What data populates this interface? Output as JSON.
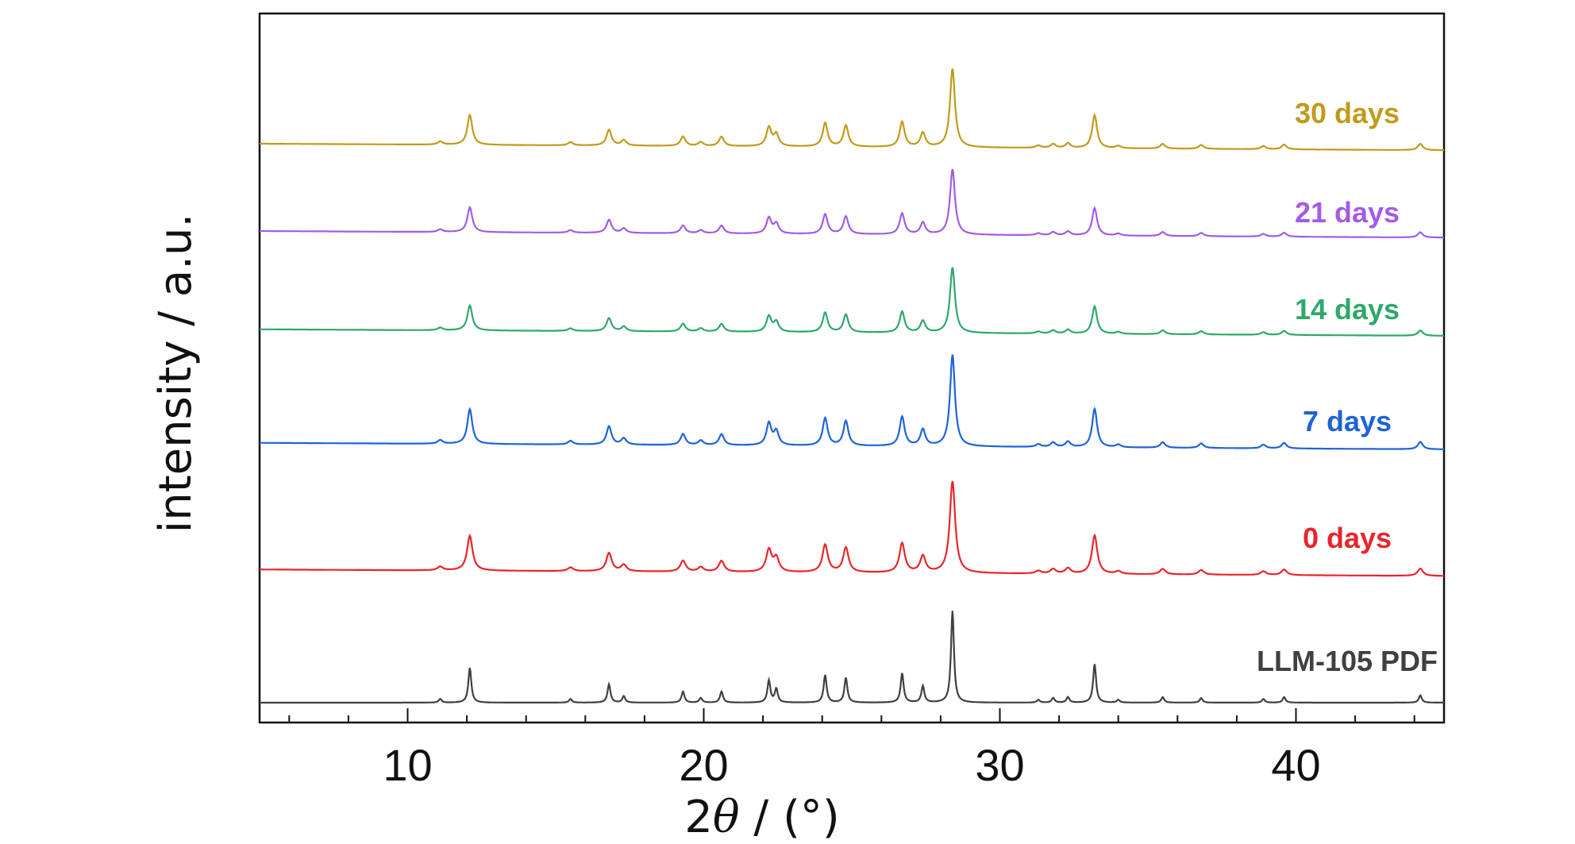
{
  "chart_data": {
    "type": "line",
    "xlabel_prefix": "2",
    "xlabel_theta": "θ",
    "xlabel_suffix": " / (°)",
    "ylabel": "intensity / a.u.",
    "xlim": [
      5,
      45
    ],
    "xticks": [
      "10",
      "20",
      "30",
      "40"
    ],
    "grid": false,
    "peaks": [
      {
        "x": 11.1,
        "h": 0.04
      },
      {
        "x": 12.1,
        "h": 0.38
      },
      {
        "x": 15.5,
        "h": 0.04
      },
      {
        "x": 16.8,
        "h": 0.2
      },
      {
        "x": 17.3,
        "h": 0.07
      },
      {
        "x": 19.3,
        "h": 0.12
      },
      {
        "x": 19.9,
        "h": 0.05
      },
      {
        "x": 20.6,
        "h": 0.12
      },
      {
        "x": 22.2,
        "h": 0.24
      },
      {
        "x": 22.45,
        "h": 0.15
      },
      {
        "x": 24.1,
        "h": 0.3
      },
      {
        "x": 24.8,
        "h": 0.27
      },
      {
        "x": 26.7,
        "h": 0.32
      },
      {
        "x": 27.4,
        "h": 0.18
      },
      {
        "x": 28.4,
        "h": 1.0
      },
      {
        "x": 31.3,
        "h": 0.03
      },
      {
        "x": 31.8,
        "h": 0.05
      },
      {
        "x": 32.3,
        "h": 0.06
      },
      {
        "x": 33.2,
        "h": 0.42
      },
      {
        "x": 34.0,
        "h": 0.03
      },
      {
        "x": 35.5,
        "h": 0.06
      },
      {
        "x": 36.8,
        "h": 0.05
      },
      {
        "x": 38.9,
        "h": 0.04
      },
      {
        "x": 39.6,
        "h": 0.06
      },
      {
        "x": 44.2,
        "h": 0.08
      }
    ],
    "series": [
      {
        "name": "LLM-105 PDF",
        "color": "#404040",
        "baseline": 0.0,
        "tilt": 0.0,
        "scale": 0.42,
        "width": 0.06
      },
      {
        "name": "0 days",
        "color": "#e8252a",
        "baseline": 0.58,
        "tilt": 0.03,
        "scale": 0.42,
        "width": 0.11
      },
      {
        "name": "7 days",
        "color": "#1e63d6",
        "baseline": 1.16,
        "tilt": 0.03,
        "scale": 0.42,
        "width": 0.1
      },
      {
        "name": "14 days",
        "color": "#2ea86a",
        "baseline": 1.68,
        "tilt": 0.03,
        "scale": 0.3,
        "width": 0.1
      },
      {
        "name": "21 days",
        "color": "#a25be8",
        "baseline": 2.13,
        "tilt": 0.03,
        "scale": 0.3,
        "width": 0.1
      },
      {
        "name": "30 days",
        "color": "#c19a1a",
        "baseline": 2.53,
        "tilt": 0.03,
        "scale": 0.36,
        "width": 0.1
      }
    ]
  }
}
